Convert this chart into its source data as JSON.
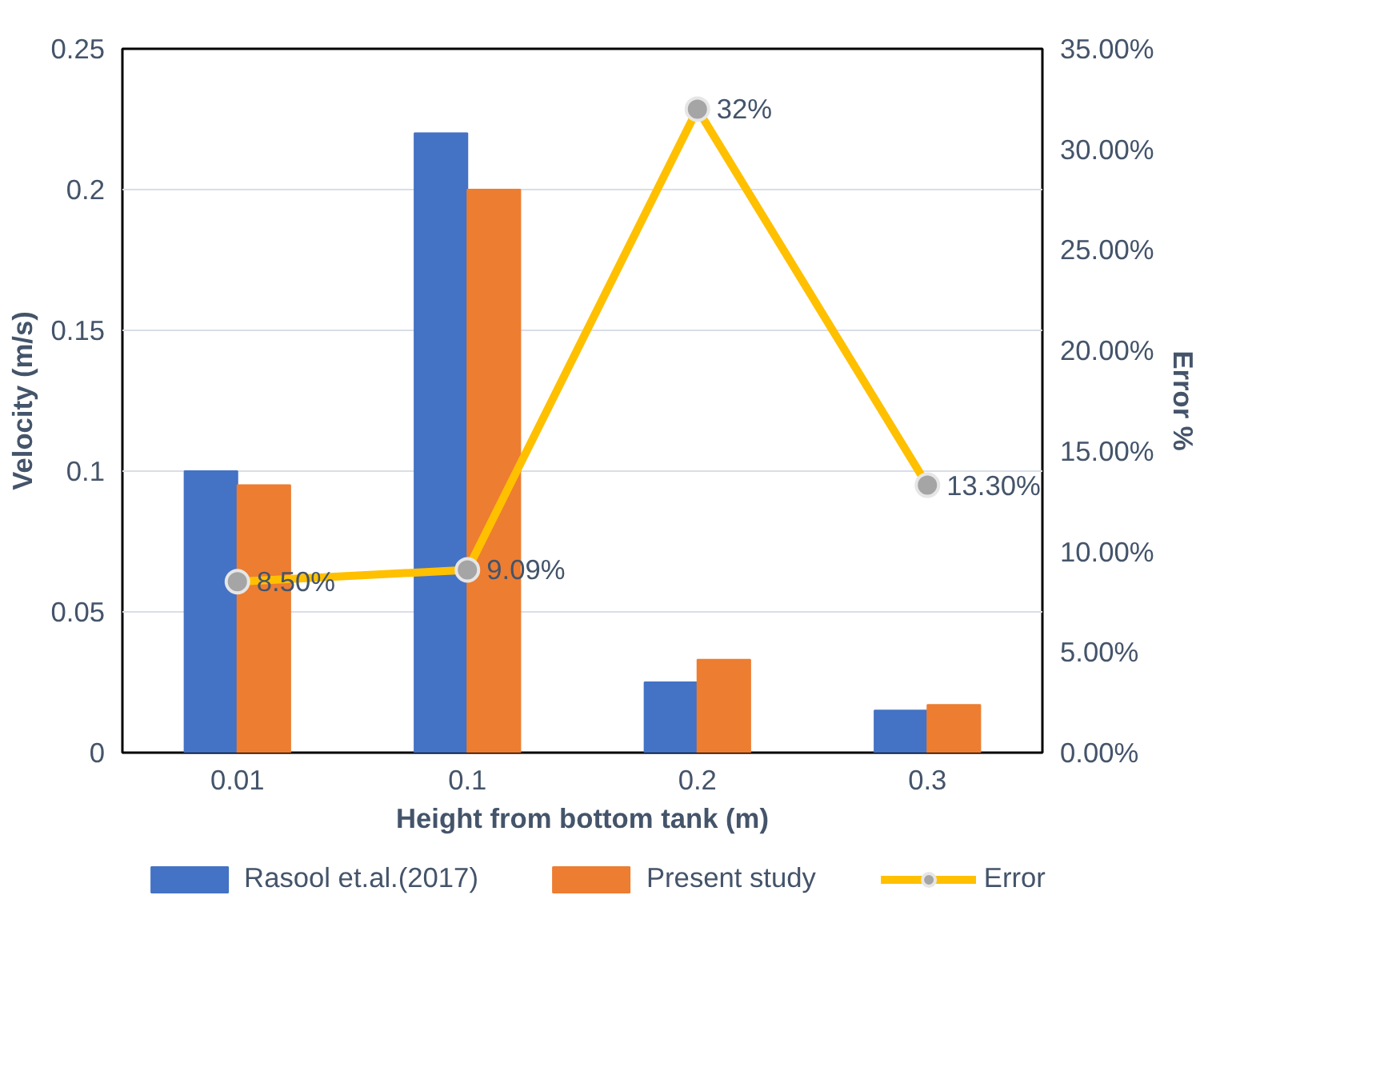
{
  "chart_data": {
    "type": "bar",
    "xlabel": "Height from bottom tank (m)",
    "ylabel": "Velocity (m/s)",
    "y2label": "Error %",
    "categories": [
      "0.01",
      "0.1",
      "0.2",
      "0.3"
    ],
    "series": [
      {
        "name": "Rasool et.al.(2017)",
        "color": "#4472c4",
        "values": [
          0.1,
          0.22,
          0.025,
          0.015
        ]
      },
      {
        "name": "Present study",
        "color": "#ed7d31",
        "values": [
          0.095,
          0.2,
          0.033,
          0.017
        ]
      },
      {
        "name": "Error",
        "type": "line",
        "axis": "y2",
        "color": "#ffc000",
        "marker": "circle",
        "values": [
          8.5,
          9.09,
          32,
          13.3
        ],
        "value_labels": [
          "8.50%",
          "9.09%",
          "32%",
          "13.30%"
        ]
      }
    ],
    "ylim": [
      0,
      0.25
    ],
    "yticks": [
      0,
      0.05,
      0.1,
      0.15,
      0.2,
      0.25
    ],
    "y2lim": [
      0,
      35
    ],
    "y2ticks": [
      {
        "value": 0,
        "label": "0.00%"
      },
      {
        "value": 5,
        "label": "5.00%"
      },
      {
        "value": 10,
        "label": "10.00%"
      },
      {
        "value": 15,
        "label": "15.00%"
      },
      {
        "value": 20,
        "label": "20.00%"
      },
      {
        "value": 25,
        "label": "25.00%"
      },
      {
        "value": 30,
        "label": "30.00%"
      },
      {
        "value": 35,
        "label": "35.00%"
      }
    ],
    "grid": "y",
    "legend": "bottom"
  }
}
